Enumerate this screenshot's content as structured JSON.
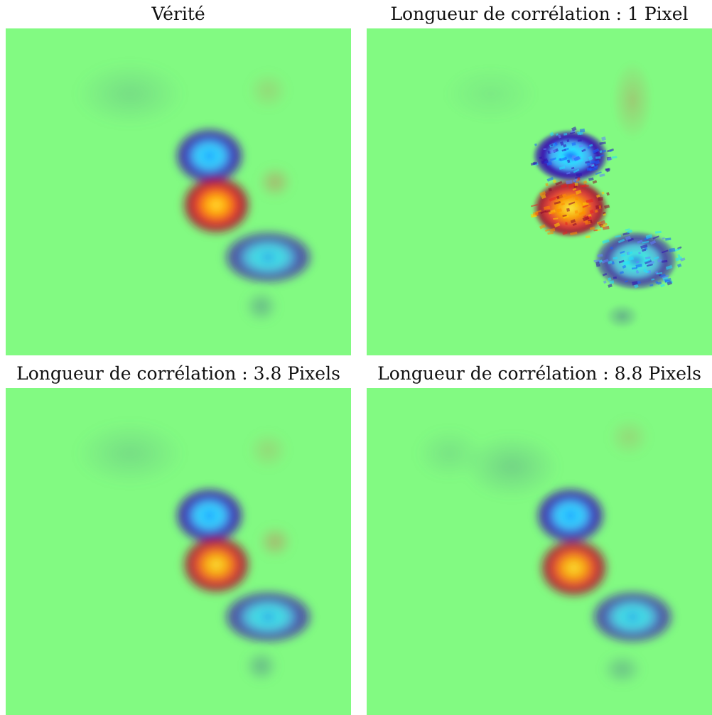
{
  "chart_data": [
    {
      "type": "heatmap",
      "title": "Vérité",
      "colormap": "jet",
      "background_color": "#82fa82",
      "noise": 0,
      "features": [
        {
          "kind": "negative-vortex",
          "cx": 0.59,
          "cy": 0.39,
          "rx": 0.1,
          "ry": 0.085,
          "intensity": -1.0
        },
        {
          "kind": "positive-vortex",
          "cx": 0.61,
          "cy": 0.54,
          "rx": 0.1,
          "ry": 0.09,
          "intensity": 1.0
        },
        {
          "kind": "negative-vortex",
          "cx": 0.76,
          "cy": 0.7,
          "rx": 0.13,
          "ry": 0.08,
          "intensity": -0.8
        },
        {
          "kind": "weak-negative",
          "cx": 0.36,
          "cy": 0.2,
          "rx": 0.16,
          "ry": 0.1,
          "intensity": -0.15
        },
        {
          "kind": "weak-positive",
          "cx": 0.76,
          "cy": 0.19,
          "rx": 0.06,
          "ry": 0.06,
          "intensity": 0.15
        },
        {
          "kind": "weak-positive",
          "cx": 0.78,
          "cy": 0.47,
          "rx": 0.05,
          "ry": 0.05,
          "intensity": 0.3
        },
        {
          "kind": "weak-negative",
          "cx": 0.74,
          "cy": 0.85,
          "rx": 0.05,
          "ry": 0.05,
          "intensity": -0.35
        }
      ]
    },
    {
      "type": "heatmap",
      "title": "Longueur de corrélation : 1 Pixel",
      "colormap": "jet",
      "background_color": "#82fa82",
      "noise": 1,
      "features": [
        {
          "kind": "negative-vortex",
          "cx": 0.59,
          "cy": 0.39,
          "rx": 0.11,
          "ry": 0.08,
          "intensity": -1.0
        },
        {
          "kind": "positive-vortex",
          "cx": 0.59,
          "cy": 0.55,
          "rx": 0.11,
          "ry": 0.09,
          "intensity": 0.95
        },
        {
          "kind": "negative-vortex",
          "cx": 0.78,
          "cy": 0.71,
          "rx": 0.12,
          "ry": 0.09,
          "intensity": -0.75
        },
        {
          "kind": "weak-negative",
          "cx": 0.36,
          "cy": 0.2,
          "rx": 0.14,
          "ry": 0.09,
          "intensity": -0.08
        },
        {
          "kind": "weak-positive",
          "cx": 0.77,
          "cy": 0.22,
          "rx": 0.06,
          "ry": 0.12,
          "intensity": 0.2
        },
        {
          "kind": "weak-negative",
          "cx": 0.74,
          "cy": 0.88,
          "rx": 0.05,
          "ry": 0.04,
          "intensity": -0.35
        }
      ]
    },
    {
      "type": "heatmap",
      "title": "Longueur de corrélation : 3.8 Pixels",
      "colormap": "jet",
      "background_color": "#82fa82",
      "noise": 0,
      "features": [
        {
          "kind": "negative-vortex",
          "cx": 0.59,
          "cy": 0.39,
          "rx": 0.1,
          "ry": 0.085,
          "intensity": -1.0
        },
        {
          "kind": "positive-vortex",
          "cx": 0.61,
          "cy": 0.54,
          "rx": 0.1,
          "ry": 0.09,
          "intensity": 0.95
        },
        {
          "kind": "negative-vortex",
          "cx": 0.76,
          "cy": 0.7,
          "rx": 0.13,
          "ry": 0.08,
          "intensity": -0.8
        },
        {
          "kind": "weak-negative",
          "cx": 0.36,
          "cy": 0.2,
          "rx": 0.16,
          "ry": 0.1,
          "intensity": -0.15
        },
        {
          "kind": "weak-positive",
          "cx": 0.76,
          "cy": 0.19,
          "rx": 0.06,
          "ry": 0.06,
          "intensity": 0.15
        },
        {
          "kind": "weak-positive",
          "cx": 0.78,
          "cy": 0.47,
          "rx": 0.05,
          "ry": 0.05,
          "intensity": 0.3
        },
        {
          "kind": "weak-negative",
          "cx": 0.74,
          "cy": 0.85,
          "rx": 0.05,
          "ry": 0.05,
          "intensity": -0.35
        }
      ]
    },
    {
      "type": "heatmap",
      "title": "Longueur de corrélation : 8.8 Pixels",
      "colormap": "jet",
      "background_color": "#82fa82",
      "noise": 0,
      "features": [
        {
          "kind": "negative-vortex",
          "cx": 0.59,
          "cy": 0.39,
          "rx": 0.1,
          "ry": 0.085,
          "intensity": -1.0
        },
        {
          "kind": "positive-vortex",
          "cx": 0.6,
          "cy": 0.55,
          "rx": 0.1,
          "ry": 0.09,
          "intensity": 0.95
        },
        {
          "kind": "negative-vortex",
          "cx": 0.77,
          "cy": 0.7,
          "rx": 0.12,
          "ry": 0.08,
          "intensity": -0.8
        },
        {
          "kind": "weak-negative",
          "cx": 0.42,
          "cy": 0.24,
          "rx": 0.14,
          "ry": 0.1,
          "intensity": -0.2
        },
        {
          "kind": "weak-negative",
          "cx": 0.24,
          "cy": 0.2,
          "rx": 0.1,
          "ry": 0.08,
          "intensity": -0.12
        },
        {
          "kind": "weak-positive",
          "cx": 0.76,
          "cy": 0.15,
          "rx": 0.06,
          "ry": 0.06,
          "intensity": 0.15
        },
        {
          "kind": "weak-negative",
          "cx": 0.74,
          "cy": 0.86,
          "rx": 0.06,
          "ry": 0.05,
          "intensity": -0.3
        }
      ]
    }
  ]
}
